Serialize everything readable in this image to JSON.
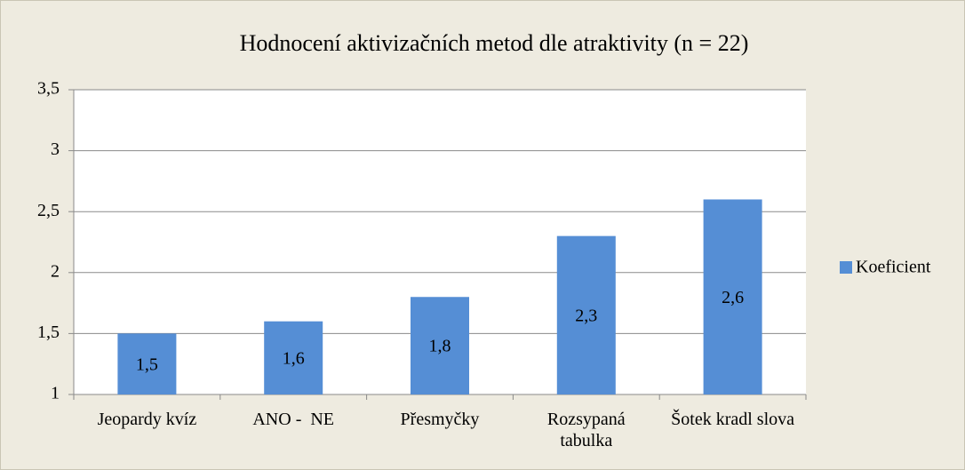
{
  "chart_data": {
    "type": "bar",
    "title": "Hodnocení aktivizačních metod dle atraktivity (n = 22)",
    "categories": [
      "Jeopardy kvíz",
      "ANO -  NE",
      "Přesmyčky",
      "Rozsypaná tabulka",
      "Šotek kradl slova"
    ],
    "series": [
      {
        "name": "Koeficient",
        "color": "#558ed5",
        "values": [
          1.5,
          1.6,
          1.8,
          2.3,
          2.6
        ],
        "value_labels": [
          "1,5",
          "1,6",
          "1,8",
          "2,3",
          "2,6"
        ]
      }
    ],
    "ylim": [
      1,
      3.5
    ],
    "yticks": [
      1,
      {
        "value": 1.5,
        "label": "1,5"
      },
      2,
      {
        "value": 2.5,
        "label": "2,5"
      },
      3,
      {
        "value": 3.5,
        "label": "3,5"
      }
    ],
    "grid": true,
    "legend": "right"
  }
}
